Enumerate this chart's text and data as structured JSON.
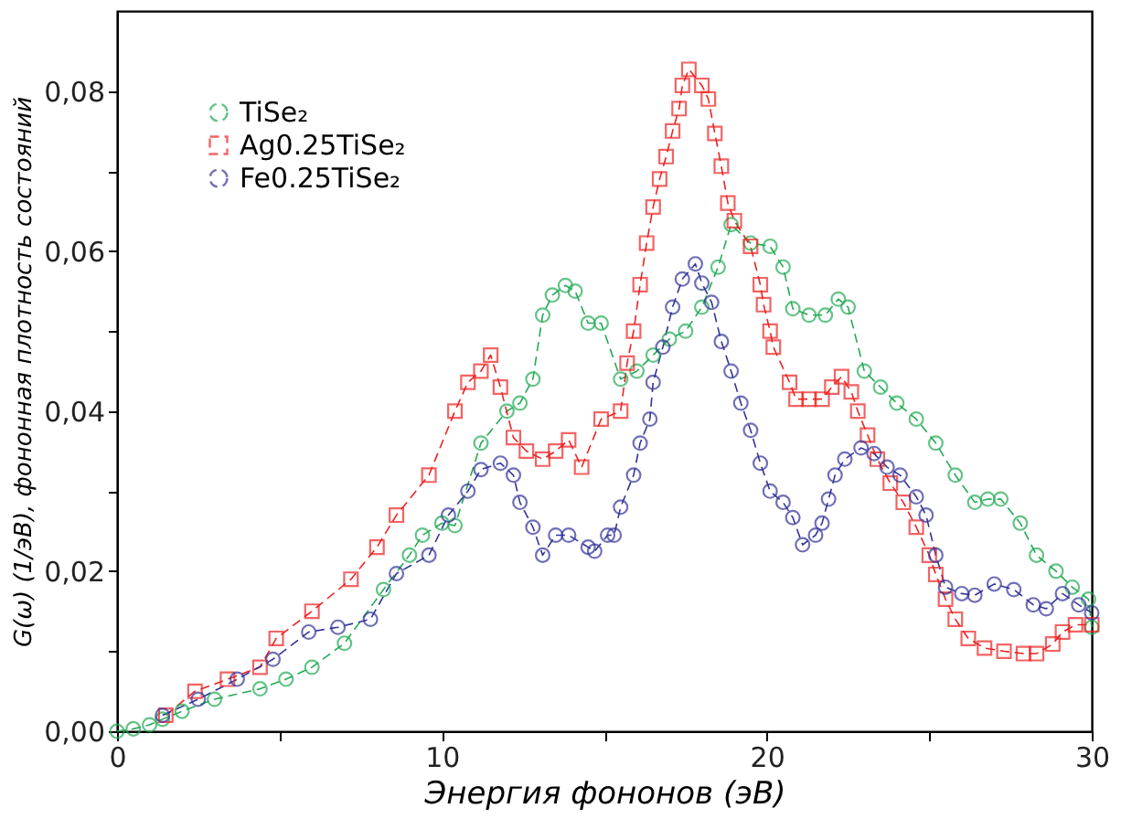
{
  "chart_data": {
    "type": "line",
    "xlabel": "Энергия фононов (эВ)",
    "ylabel": "G(ω)   (1/эВ), фононная плотность состояний",
    "xlim": [
      0,
      30
    ],
    "ylim": [
      0,
      0.09
    ],
    "xticks": [
      0,
      {
        "value": 5,
        "label": null
      },
      10,
      {
        "value": 15,
        "label": null
      },
      20,
      {
        "value": 25,
        "label": null
      },
      30
    ],
    "yticks": [
      {
        "value": 0,
        "label": "0,00"
      },
      {
        "value": 0.01,
        "label": null
      },
      {
        "value": 0.02,
        "label": "0,02"
      },
      {
        "value": 0.03,
        "label": null
      },
      {
        "value": 0.04,
        "label": "0,04"
      },
      {
        "value": 0.05,
        "label": null
      },
      {
        "value": 0.06,
        "label": "0,06"
      },
      {
        "value": 0.07,
        "label": null
      },
      {
        "value": 0.08,
        "label": "0,08"
      }
    ],
    "grid": false,
    "legend": "top left",
    "line_style": "dashed",
    "series": [
      {
        "name": "TiSe₂",
        "color": "#22aa55",
        "marker": "circle",
        "x": [
          0,
          0.5,
          1.0,
          1.4,
          2.0,
          3.0,
          4.4,
          5.2,
          6.0,
          7.0,
          8.2,
          9.0,
          9.4,
          10.0,
          10.4,
          11.2,
          12.0,
          12.4,
          12.8,
          13.1,
          13.4,
          13.8,
          14.1,
          14.5,
          14.9,
          15.5,
          16.0,
          16.5,
          17.0,
          17.5,
          18.0,
          18.5,
          18.9,
          19.5,
          20.1,
          20.5,
          20.8,
          21.3,
          21.8,
          22.2,
          22.5,
          23.0,
          23.5,
          24.0,
          24.6,
          25.2,
          25.8,
          26.4,
          26.8,
          27.2,
          27.8,
          28.3,
          28.9,
          29.4,
          29.9,
          30.0
        ],
        "values": [
          0,
          0.0003,
          0.0008,
          0.0015,
          0.0025,
          0.004,
          0.0053,
          0.0065,
          0.008,
          0.011,
          0.0177,
          0.022,
          0.0245,
          0.026,
          0.0257,
          0.036,
          0.04,
          0.041,
          0.044,
          0.052,
          0.0545,
          0.0557,
          0.055,
          0.051,
          0.051,
          0.044,
          0.045,
          0.047,
          0.049,
          0.05,
          0.053,
          0.058,
          0.0633,
          0.061,
          0.0606,
          0.058,
          0.0528,
          0.052,
          0.052,
          0.054,
          0.053,
          0.045,
          0.043,
          0.041,
          0.039,
          0.036,
          0.032,
          0.0286,
          0.029,
          0.029,
          0.026,
          0.022,
          0.02,
          0.018,
          0.0165,
          0.013
        ]
      },
      {
        "name": "Ag0.25TiSe₂",
        "color": "#ee2222",
        "marker": "square",
        "x": [
          1.5,
          2.4,
          3.4,
          4.4,
          4.9,
          6.0,
          7.2,
          8.0,
          8.6,
          9.6,
          10.4,
          10.8,
          11.2,
          11.5,
          11.8,
          12.2,
          12.6,
          13.1,
          13.5,
          13.9,
          14.3,
          14.9,
          15.5,
          15.7,
          15.9,
          16.1,
          16.3,
          16.5,
          16.7,
          16.9,
          17.1,
          17.3,
          17.4,
          17.6,
          18.0,
          18.2,
          18.4,
          18.6,
          18.8,
          19.0,
          19.5,
          19.8,
          19.9,
          20.1,
          20.2,
          20.7,
          20.9,
          21.3,
          21.7,
          22.0,
          22.3,
          22.6,
          22.8,
          23.1,
          23.4,
          23.8,
          24.2,
          24.6,
          25.0,
          25.2,
          25.5,
          25.8,
          26.2,
          26.7,
          27.3,
          27.9,
          28.3,
          28.8,
          29.1,
          29.5,
          30.0
        ],
        "values": [
          0.002,
          0.005,
          0.0065,
          0.008,
          0.0116,
          0.015,
          0.019,
          0.023,
          0.027,
          0.032,
          0.04,
          0.0436,
          0.045,
          0.047,
          0.043,
          0.0367,
          0.035,
          0.034,
          0.035,
          0.0364,
          0.033,
          0.039,
          0.04,
          0.046,
          0.05,
          0.0558,
          0.061,
          0.0655,
          0.069,
          0.0718,
          0.075,
          0.0778,
          0.0807,
          0.0827,
          0.0807,
          0.079,
          0.0747,
          0.0706,
          0.066,
          0.0638,
          0.0606,
          0.0558,
          0.0533,
          0.05,
          0.048,
          0.0436,
          0.0415,
          0.0415,
          0.0415,
          0.043,
          0.0443,
          0.0424,
          0.04,
          0.037,
          0.034,
          0.031,
          0.0286,
          0.0255,
          0.022,
          0.0196,
          0.0165,
          0.014,
          0.0116,
          0.0104,
          0.01,
          0.0097,
          0.0097,
          0.0109,
          0.0124,
          0.0133,
          0.0133
        ]
      },
      {
        "name": "Fe0.25TiSe₂",
        "color": "#333399",
        "marker": "circle",
        "x": [
          1.4,
          2.5,
          3.7,
          4.8,
          5.9,
          6.8,
          7.8,
          8.6,
          9.6,
          10.2,
          10.8,
          11.2,
          11.8,
          12.2,
          12.4,
          12.8,
          13.1,
          13.5,
          13.9,
          14.5,
          14.7,
          15.1,
          15.3,
          15.5,
          15.9,
          16.1,
          16.4,
          16.5,
          16.8,
          17.1,
          17.4,
          17.8,
          18.0,
          18.3,
          18.6,
          18.9,
          19.2,
          19.5,
          19.8,
          20.1,
          20.5,
          20.8,
          21.1,
          21.5,
          21.7,
          21.9,
          22.1,
          22.4,
          22.9,
          23.3,
          23.7,
          24.1,
          24.6,
          24.9,
          25.2,
          25.5,
          26.0,
          26.4,
          27.0,
          27.6,
          28.2,
          28.6,
          29.1,
          29.6,
          30.0
        ],
        "values": [
          0.002,
          0.004,
          0.0065,
          0.009,
          0.0124,
          0.013,
          0.014,
          0.0197,
          0.022,
          0.027,
          0.03,
          0.0327,
          0.0335,
          0.032,
          0.0286,
          0.0255,
          0.022,
          0.0245,
          0.0245,
          0.023,
          0.0225,
          0.0245,
          0.0245,
          0.028,
          0.032,
          0.036,
          0.039,
          0.0436,
          0.048,
          0.053,
          0.0565,
          0.0584,
          0.056,
          0.0536,
          0.0487,
          0.045,
          0.041,
          0.0376,
          0.0335,
          0.03,
          0.0286,
          0.0267,
          0.0233,
          0.0245,
          0.026,
          0.029,
          0.032,
          0.034,
          0.0354,
          0.0347,
          0.033,
          0.032,
          0.0293,
          0.027,
          0.022,
          0.018,
          0.0172,
          0.017,
          0.0184,
          0.0177,
          0.0158,
          0.0153,
          0.0172,
          0.0158,
          0.0148
        ]
      }
    ]
  }
}
